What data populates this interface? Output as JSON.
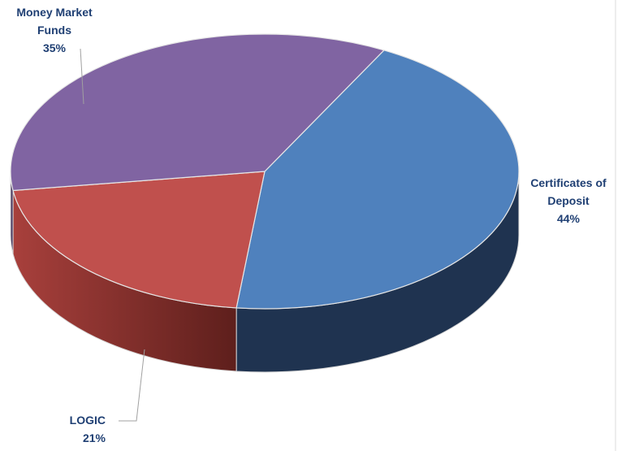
{
  "chart_data": {
    "type": "pie",
    "style": "3d-exploded-depth",
    "slices": [
      {
        "label": "Certificates of Deposit",
        "label_lines": [
          "Certificates of",
          "Deposit"
        ],
        "value": 44,
        "value_label": "44%",
        "color": "#4f81bd",
        "side_color": "#1f3350"
      },
      {
        "label": "LOGIC",
        "label_lines": [
          "LOGIC"
        ],
        "value": 21,
        "value_label": "21%",
        "color": "#c0504d",
        "side_color": "#7a2a27"
      },
      {
        "label": "Money Market Funds",
        "label_lines": [
          "Money Market",
          "Funds"
        ],
        "value": 35,
        "value_label": "35%",
        "color": "#8064a2",
        "side_color": "#4b3a60"
      }
    ],
    "label_color": "#1f3f73",
    "legend": "none"
  }
}
